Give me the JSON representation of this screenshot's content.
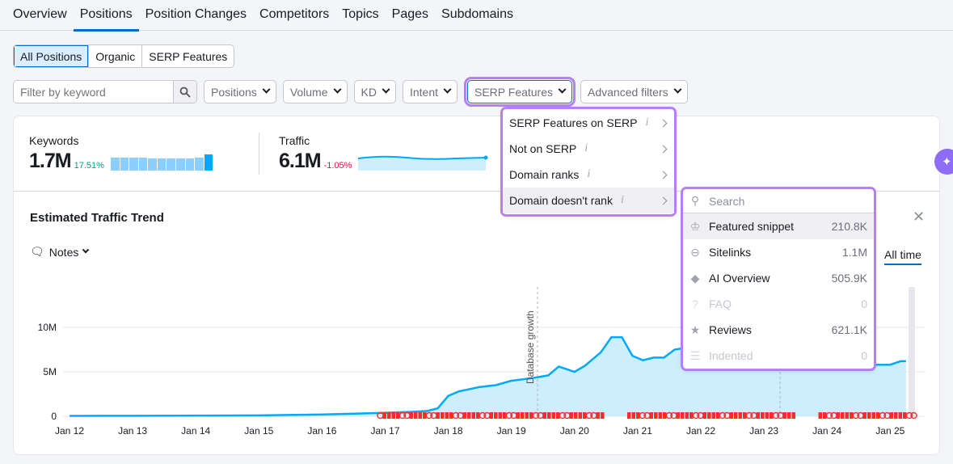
{
  "tabs": [
    "Overview",
    "Positions",
    "Position Changes",
    "Competitors",
    "Topics",
    "Pages",
    "Subdomains"
  ],
  "active_tab": "Positions",
  "segments": [
    "All Positions",
    "Organic",
    "SERP Features"
  ],
  "filters": {
    "keyword_placeholder": "Filter by keyword",
    "dropdowns": [
      "Positions",
      "Volume",
      "KD",
      "Intent",
      "SERP Features",
      "Advanced filters"
    ]
  },
  "metrics": {
    "keywords": {
      "label": "Keywords",
      "value": "1.7M",
      "change": "17.51%",
      "bars": [
        0.78,
        0.8,
        0.8,
        0.78,
        0.76,
        0.74,
        0.74,
        0.74,
        0.76,
        0.8,
        1.0
      ]
    },
    "traffic": {
      "label": "Traffic",
      "value": "6.1M",
      "change": "-1.05%"
    }
  },
  "chart_card": {
    "title": "Estimated Traffic Trend",
    "notes_label": "Notes",
    "range_label": "All time",
    "annotation": "Database growth"
  },
  "serp_menu": {
    "items": [
      {
        "label": "SERP Features on SERP"
      },
      {
        "label": "Not on SERP"
      },
      {
        "label": "Domain ranks"
      },
      {
        "label": "Domain doesn't rank"
      }
    ],
    "selected": "Domain doesn't rank",
    "info_icon": "i"
  },
  "submenu": {
    "search_placeholder": "Search",
    "items": [
      {
        "label": "Featured snippet",
        "count": "210.8K",
        "icon": "crown-icon",
        "enabled": true
      },
      {
        "label": "Sitelinks",
        "count": "1.1M",
        "icon": "link-icon",
        "enabled": true
      },
      {
        "label": "AI Overview",
        "count": "505.9K",
        "icon": "ai-diamond-icon",
        "enabled": true
      },
      {
        "label": "FAQ",
        "count": "0",
        "icon": "question-icon",
        "enabled": false
      },
      {
        "label": "Reviews",
        "count": "621.1K",
        "icon": "star-icon",
        "enabled": true
      },
      {
        "label": "Indented",
        "count": "0",
        "icon": "indented-icon",
        "enabled": false
      }
    ]
  },
  "colors": {
    "accent": "#006dca",
    "line": "#00a9ff",
    "area": "#cdeefc",
    "highlight": "#b57ff5",
    "positive": "#009f81",
    "negative": "#e60f4b"
  },
  "chart_data": {
    "type": "area",
    "xlabel": "",
    "ylabel": "",
    "ylim": [
      0,
      12
    ],
    "yunit": "M",
    "yticks": [
      "0",
      "5M",
      "10M"
    ],
    "yvalues": [
      0,
      5,
      10
    ],
    "xticks": [
      "Jan 12",
      "Jan 13",
      "Jan 14",
      "Jan 15",
      "Jan 16",
      "Jan 17",
      "Jan 18",
      "Jan 19",
      "Jan 20",
      "Jan 21",
      "Jan 22",
      "Jan 23",
      "Jan 24",
      "Jan 25"
    ],
    "series": [
      {
        "x": [
          "2012-01",
          "2013-01",
          "2014-01",
          "2015-01",
          "2016-01",
          "2016-07",
          "2017-01",
          "2017-06",
          "2017-09",
          "2017-11",
          "2018-01",
          "2018-03",
          "2018-07",
          "2018-10",
          "2019-01",
          "2019-05",
          "2019-08",
          "2019-10",
          "2020-01",
          "2020-03",
          "2020-06",
          "2020-08",
          "2020-10",
          "2020-12",
          "2021-02",
          "2021-04",
          "2021-06",
          "2021-08",
          "2022-01",
          "2022-06",
          "2023-01",
          "2023-06",
          "2024-01",
          "2024-06",
          "2024-10",
          "2025-01",
          "2025-03",
          "2025-04"
        ],
        "y": [
          0.05,
          0.06,
          0.08,
          0.1,
          0.2,
          0.3,
          0.4,
          0.5,
          0.6,
          0.9,
          2.3,
          2.8,
          3.3,
          3.5,
          4.0,
          4.3,
          4.6,
          5.6,
          5.0,
          5.7,
          7.2,
          8.9,
          8.9,
          6.8,
          6.3,
          6.6,
          6.6,
          7.5,
          8.0,
          8.3,
          7.8,
          7.5,
          6.8,
          6.2,
          5.8,
          5.8,
          6.2,
          6.2
        ]
      }
    ]
  }
}
